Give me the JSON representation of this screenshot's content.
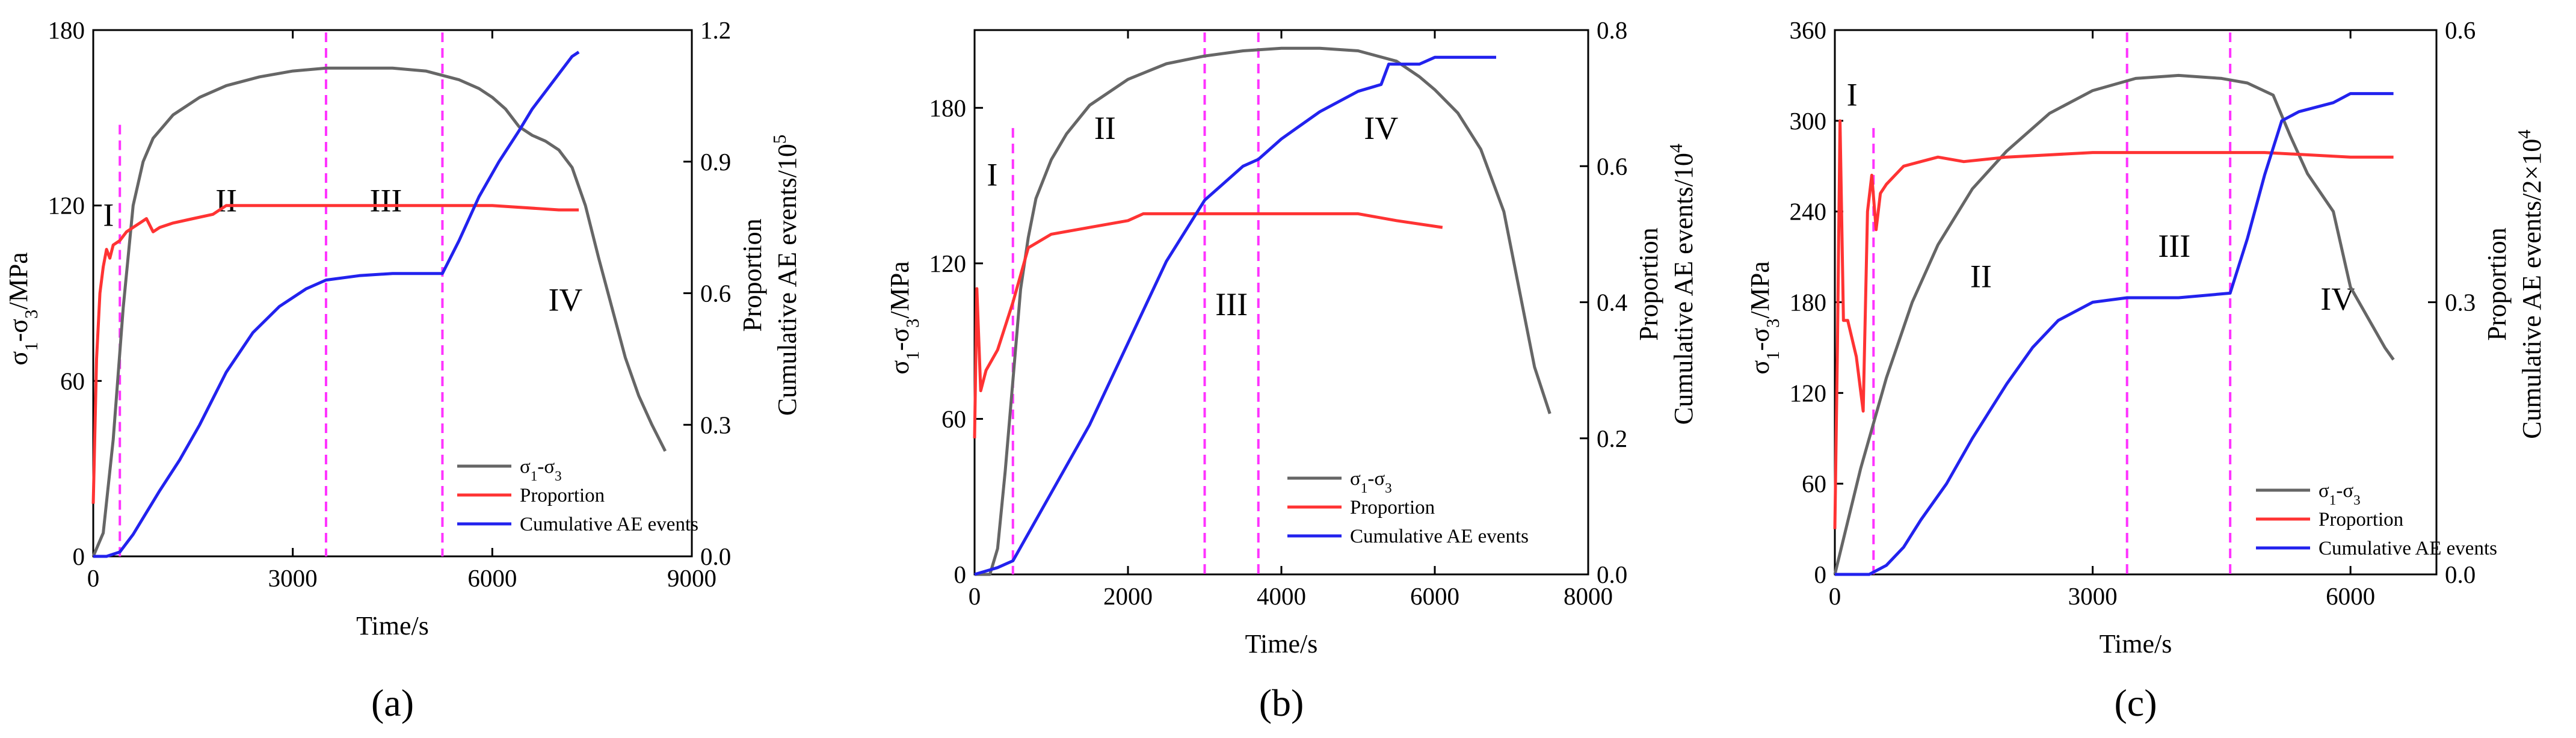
{
  "chart_data": [
    {
      "panel_label": "(a)",
      "type": "line",
      "xlabel": "Time/s",
      "ylabel_left": "σ1-σ3/MPa",
      "ylabel_right_top": "Proportion",
      "ylabel_right_bottom": "Cumulative AE events/10^5",
      "xlim": [
        0,
        9000
      ],
      "ylim_left": [
        0,
        180
      ],
      "ylim_right": [
        0,
        1.2
      ],
      "xticks": [
        0,
        3000,
        6000,
        9000
      ],
      "yticks_left": [
        0,
        60,
        120,
        180
      ],
      "yticks_right": [
        0.0,
        0.3,
        0.6,
        0.9,
        1.2
      ],
      "legend": [
        "σ1-σ3",
        "Proportion",
        "Cumulative AE events"
      ],
      "stage_boundaries": [
        400,
        3500,
        5250
      ],
      "stage_labels": [
        {
          "text": "I",
          "x": 230,
          "y": 113
        },
        {
          "text": "II",
          "x": 2000,
          "y": 118
        },
        {
          "text": "III",
          "x": 4400,
          "y": 118
        },
        {
          "text": "IV",
          "x": 7100,
          "y": 84
        }
      ],
      "series": [
        {
          "name": "σ1-σ3",
          "color": "#666666",
          "axis": "left",
          "x": [
            0,
            150,
            300,
            450,
            600,
            750,
            900,
            1200,
            1600,
            2000,
            2500,
            3000,
            3500,
            4000,
            4500,
            5000,
            5500,
            5800,
            6000,
            6200,
            6400,
            6600,
            6800,
            7000,
            7200,
            7400,
            7600,
            7800,
            8000,
            8200,
            8400,
            8600
          ],
          "y": [
            0,
            8,
            40,
            85,
            120,
            135,
            143,
            151,
            157,
            161,
            164,
            166,
            167,
            167,
            167,
            166,
            163,
            160,
            157,
            153,
            147,
            144,
            142,
            139,
            133,
            120,
            102,
            85,
            68,
            55,
            45,
            36
          ]
        },
        {
          "name": "Proportion",
          "color": "#ff3333",
          "axis": "right",
          "x": [
            0,
            50,
            100,
            150,
            200,
            250,
            300,
            400,
            500,
            600,
            700,
            800,
            900,
            1000,
            1200,
            1500,
            1800,
            2000,
            3000,
            4000,
            5000,
            6000,
            7000,
            7300
          ],
          "y": [
            0.12,
            0.45,
            0.6,
            0.66,
            0.7,
            0.68,
            0.71,
            0.72,
            0.74,
            0.75,
            0.76,
            0.77,
            0.74,
            0.75,
            0.76,
            0.77,
            0.78,
            0.8,
            0.8,
            0.8,
            0.8,
            0.8,
            0.79,
            0.79
          ]
        },
        {
          "name": "Cumulative AE events",
          "color": "#2222ee",
          "axis": "right",
          "x": [
            0,
            200,
            400,
            600,
            800,
            1000,
            1300,
            1600,
            2000,
            2400,
            2800,
            3200,
            3500,
            4000,
            4500,
            5000,
            5250,
            5500,
            5800,
            6100,
            6400,
            6600,
            6800,
            7000,
            7200,
            7300
          ],
          "y": [
            0.0,
            0.0,
            0.01,
            0.05,
            0.1,
            0.15,
            0.22,
            0.3,
            0.42,
            0.51,
            0.57,
            0.61,
            0.63,
            0.64,
            0.645,
            0.645,
            0.645,
            0.72,
            0.82,
            0.9,
            0.97,
            1.02,
            1.06,
            1.1,
            1.14,
            1.15
          ]
        }
      ]
    },
    {
      "panel_label": "(b)",
      "type": "line",
      "xlabel": "Time/s",
      "ylabel_left": "σ1-σ3/MPa",
      "ylabel_right_top": "Proportion",
      "ylabel_right_bottom": "Cumulative AE events/10^4",
      "xlim": [
        0,
        8000
      ],
      "ylim_left": [
        0,
        210
      ],
      "ylim_right": [
        0,
        0.8
      ],
      "xticks": [
        0,
        2000,
        4000,
        6000,
        8000
      ],
      "yticks_left": [
        0,
        60,
        120,
        180
      ],
      "yticks_right": [
        0.0,
        0.2,
        0.4,
        0.6,
        0.8
      ],
      "legend": [
        "σ1-σ3",
        "Proportion",
        "Cumulative AE events"
      ],
      "stage_boundaries": [
        500,
        3000,
        3700
      ],
      "stage_labels": [
        {
          "text": "I",
          "x": 230,
          "y": 150
        },
        {
          "text": "II",
          "x": 1700,
          "y": 168
        },
        {
          "text": "III",
          "x": 3350,
          "y": 100
        },
        {
          "text": "IV",
          "x": 5300,
          "y": 168
        }
      ],
      "series": [
        {
          "name": "σ1-σ3",
          "color": "#666666",
          "axis": "left",
          "x": [
            0,
            200,
            300,
            400,
            500,
            600,
            700,
            800,
            1000,
            1200,
            1500,
            2000,
            2500,
            3000,
            3500,
            4000,
            4500,
            5000,
            5500,
            5800,
            6000,
            6300,
            6600,
            6900,
            7100,
            7300,
            7500
          ],
          "y": [
            0,
            0,
            10,
            40,
            75,
            110,
            130,
            145,
            160,
            170,
            181,
            191,
            197,
            200,
            202,
            203,
            203,
            202,
            198,
            192,
            187,
            178,
            164,
            140,
            110,
            80,
            62
          ]
        },
        {
          "name": "Proportion",
          "color": "#ff3333",
          "axis": "right",
          "x": [
            0,
            30,
            80,
            150,
            300,
            500,
            700,
            1000,
            1500,
            2000,
            2200,
            3000,
            4000,
            5000,
            5500,
            6100
          ],
          "y": [
            0.2,
            0.42,
            0.27,
            0.3,
            0.33,
            0.4,
            0.48,
            0.5,
            0.51,
            0.52,
            0.53,
            0.53,
            0.53,
            0.53,
            0.52,
            0.51
          ]
        },
        {
          "name": "Cumulative AE events",
          "color": "#2222ee",
          "axis": "right",
          "x": [
            0,
            300,
            500,
            700,
            1000,
            1500,
            2000,
            2500,
            3000,
            3500,
            3700,
            4000,
            4500,
            5000,
            5300,
            5400,
            5800,
            6000,
            6200,
            6800
          ],
          "y": [
            0.0,
            0.01,
            0.02,
            0.06,
            0.12,
            0.22,
            0.34,
            0.46,
            0.55,
            0.6,
            0.61,
            0.64,
            0.68,
            0.71,
            0.72,
            0.75,
            0.75,
            0.76,
            0.76,
            0.76
          ]
        }
      ]
    },
    {
      "panel_label": "(c)",
      "type": "line",
      "xlabel": "Time/s",
      "ylabel_left": "σ1-σ3/MPa",
      "ylabel_right_top": "Proportion",
      "ylabel_right_bottom": "Cumulative AE events/2×10^4",
      "xlim": [
        0,
        7000
      ],
      "ylim_left": [
        0,
        360
      ],
      "ylim_right": [
        0,
        0.6
      ],
      "xticks": [
        0,
        3000,
        6000
      ],
      "yticks_left": [
        0,
        60,
        120,
        180,
        240,
        300,
        360
      ],
      "yticks_right": [
        0.0,
        0.3,
        0.6
      ],
      "legend": [
        "σ1-σ3",
        "Proportion",
        "Cumulative AE events"
      ],
      "stage_boundaries": [
        450,
        3400,
        4600
      ],
      "stage_labels": [
        {
          "text": "I",
          "x": 200,
          "y": 310
        },
        {
          "text": "II",
          "x": 1700,
          "y": 190
        },
        {
          "text": "III",
          "x": 3950,
          "y": 210
        },
        {
          "text": "IV",
          "x": 5850,
          "y": 175
        }
      ],
      "series": [
        {
          "name": "σ1-σ3",
          "color": "#666666",
          "axis": "left",
          "x": [
            0,
            300,
            600,
            900,
            1200,
            1600,
            2000,
            2500,
            3000,
            3500,
            4000,
            4500,
            4800,
            5100,
            5300,
            5500,
            5800,
            6000,
            6200,
            6400,
            6500
          ],
          "y": [
            0,
            70,
            130,
            180,
            218,
            255,
            280,
            305,
            320,
            328,
            330,
            328,
            325,
            317,
            290,
            265,
            240,
            190,
            170,
            150,
            142
          ]
        },
        {
          "name": "Proportion",
          "color": "#ff3333",
          "axis": "right",
          "x": [
            0,
            30,
            60,
            100,
            150,
            250,
            330,
            380,
            430,
            480,
            530,
            600,
            700,
            800,
            1000,
            1200,
            1500,
            2000,
            3000,
            4000,
            5000,
            6000,
            6500
          ],
          "y": [
            0.05,
            0.25,
            0.5,
            0.28,
            0.28,
            0.24,
            0.18,
            0.4,
            0.44,
            0.38,
            0.42,
            0.43,
            0.44,
            0.45,
            0.455,
            0.46,
            0.455,
            0.46,
            0.465,
            0.465,
            0.465,
            0.46,
            0.46
          ]
        },
        {
          "name": "Cumulative AE events",
          "color": "#2222ee",
          "axis": "right",
          "x": [
            0,
            400,
            600,
            800,
            1000,
            1300,
            1600,
            2000,
            2300,
            2600,
            3000,
            3400,
            4000,
            4600,
            4800,
            5000,
            5200,
            5400,
            5800,
            6000,
            6500
          ],
          "y": [
            0.0,
            0.0,
            0.01,
            0.03,
            0.06,
            0.1,
            0.15,
            0.21,
            0.25,
            0.28,
            0.3,
            0.305,
            0.305,
            0.31,
            0.37,
            0.44,
            0.5,
            0.51,
            0.52,
            0.53,
            0.53
          ]
        }
      ]
    }
  ]
}
